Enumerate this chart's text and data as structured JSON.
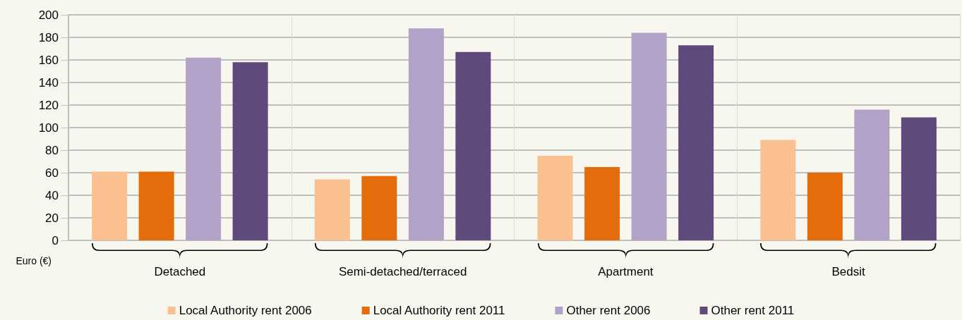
{
  "chart_data": {
    "type": "bar",
    "ylabel": "Euro (€)",
    "categories": [
      "Detached",
      "Semi-detached/terraced",
      "Apartment",
      "Bedsit"
    ],
    "series": [
      {
        "name": "Local Authority rent 2006",
        "color": "#fac090",
        "values": [
          61,
          54,
          75,
          89
        ]
      },
      {
        "name": "Local Authority rent 2011",
        "color": "#e46c0a",
        "values": [
          61,
          57,
          65,
          60
        ]
      },
      {
        "name": "Other rent 2006",
        "color": "#b3a2c7",
        "values": [
          162,
          188,
          184,
          116
        ]
      },
      {
        "name": "Other rent 2011",
        "color": "#604a7b",
        "values": [
          158,
          167,
          173,
          109
        ]
      }
    ],
    "ylim": [
      0,
      200
    ],
    "yticks": [
      0,
      20,
      40,
      60,
      80,
      100,
      120,
      140,
      160,
      180,
      200
    ],
    "grid": true,
    "legend": "bottom"
  }
}
